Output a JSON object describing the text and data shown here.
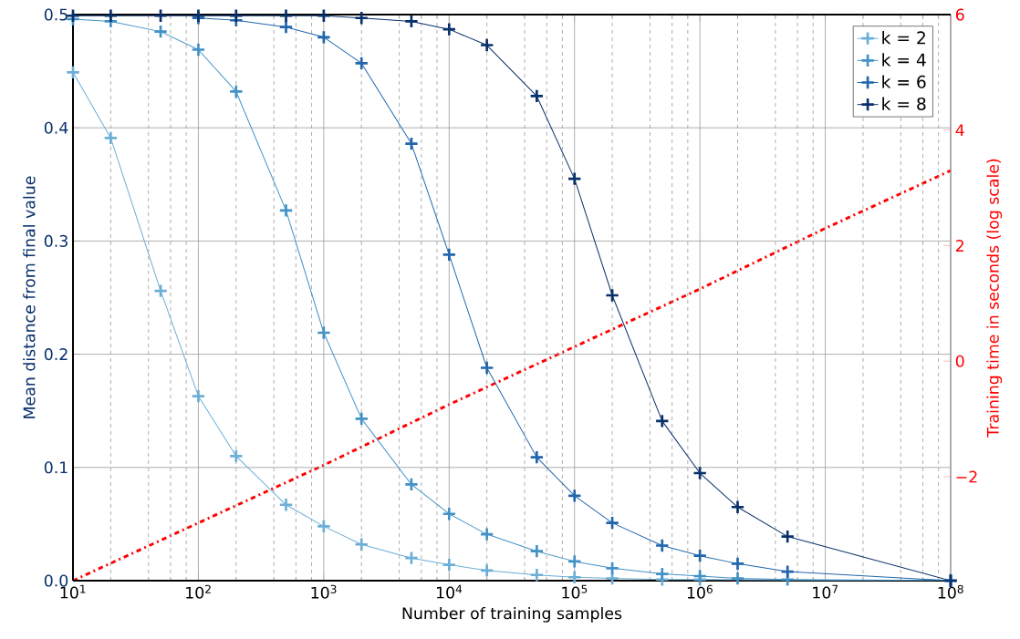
{
  "chart_data": {
    "type": "line",
    "xlabel": "Number of training samples",
    "ylabel": "Mean distance from final value",
    "y2label": "Training time in seconds (log scale)",
    "log": "x",
    "x": [
      10,
      20,
      50,
      100,
      200,
      500,
      1000,
      2000,
      5000,
      10000,
      20000,
      50000,
      100000,
      200000,
      500000,
      1000000,
      2000000,
      5000000,
      100000000
    ],
    "xlim": [
      10,
      100000000
    ],
    "xticks": [
      {
        "value": 10,
        "label": "10$^{1}$"
      },
      {
        "value": 100,
        "label": "10$^{2}$"
      },
      {
        "value": 1000,
        "label": "10$^{3}$"
      },
      {
        "value": 10000,
        "label": "10$^{4}$"
      },
      {
        "value": 100000,
        "label": "10$^{5}$"
      },
      {
        "value": 1000000,
        "label": "10$^{6}$"
      },
      {
        "value": 10000000,
        "label": "10$^{7}$"
      },
      {
        "value": 100000000,
        "label": "10$^{8}$"
      }
    ],
    "ylim": [
      0,
      0.5
    ],
    "yticks": [
      {
        "value": 0,
        "label": "0.0"
      },
      {
        "value": 0.1,
        "label": "0.1"
      },
      {
        "value": 0.2,
        "label": "0.2"
      },
      {
        "value": 0.3,
        "label": "0.3"
      },
      {
        "value": 0.4,
        "label": "0.4"
      },
      {
        "value": 0.5,
        "label": "0.5"
      }
    ],
    "y2lim": [
      -3.8,
      6
    ],
    "y2ticks": [
      {
        "value": -2,
        "label": "−2"
      },
      0,
      2,
      4,
      6
    ],
    "grid": true,
    "legend": "top right",
    "marker": "cross",
    "series": [
      {
        "name": "k = 2",
        "color": "#6baed6",
        "values": [
          0.449,
          0.391,
          0.256,
          0.163,
          0.11,
          0.067,
          0.048,
          0.032,
          0.02,
          0.014,
          0.009,
          0.005,
          0.003,
          0.002,
          0.001,
          0.001,
          null,
          null,
          0
        ]
      },
      {
        "name": "k = 4",
        "color": "#4292c6",
        "values": [
          0.496,
          0.494,
          0.485,
          0.469,
          0.432,
          0.327,
          0.219,
          0.143,
          0.085,
          0.059,
          0.041,
          0.026,
          0.017,
          0.011,
          0.006,
          0.004,
          0.002,
          0.001,
          0
        ]
      },
      {
        "name": "k = 6",
        "color": "#2166ac",
        "values": [
          null,
          null,
          null,
          0.497,
          0.495,
          0.489,
          0.48,
          0.457,
          0.386,
          0.288,
          0.188,
          0.109,
          0.075,
          0.051,
          0.031,
          0.022,
          0.015,
          0.008,
          0
        ]
      },
      {
        "name": "k = 8",
        "color": "#08306b",
        "values": [
          0.499,
          0.499,
          0.499,
          0.499,
          0.499,
          0.499,
          0.499,
          0.497,
          0.494,
          0.487,
          0.473,
          0.428,
          0.355,
          0.252,
          0.141,
          0.095,
          0.065,
          0.039,
          0
        ]
      },
      {
        "type": "line",
        "axis": "y2",
        "color": "#ff0000",
        "line_style": "dashdot",
        "marker": "none",
        "x": [
          10,
          100,
          1000,
          10000,
          100000,
          1000000,
          10000000,
          100000000
        ],
        "values": [
          -3.8,
          -2.8,
          -1.8,
          -0.75,
          0.25,
          1.25,
          2.3,
          3.3
        ]
      }
    ]
  }
}
